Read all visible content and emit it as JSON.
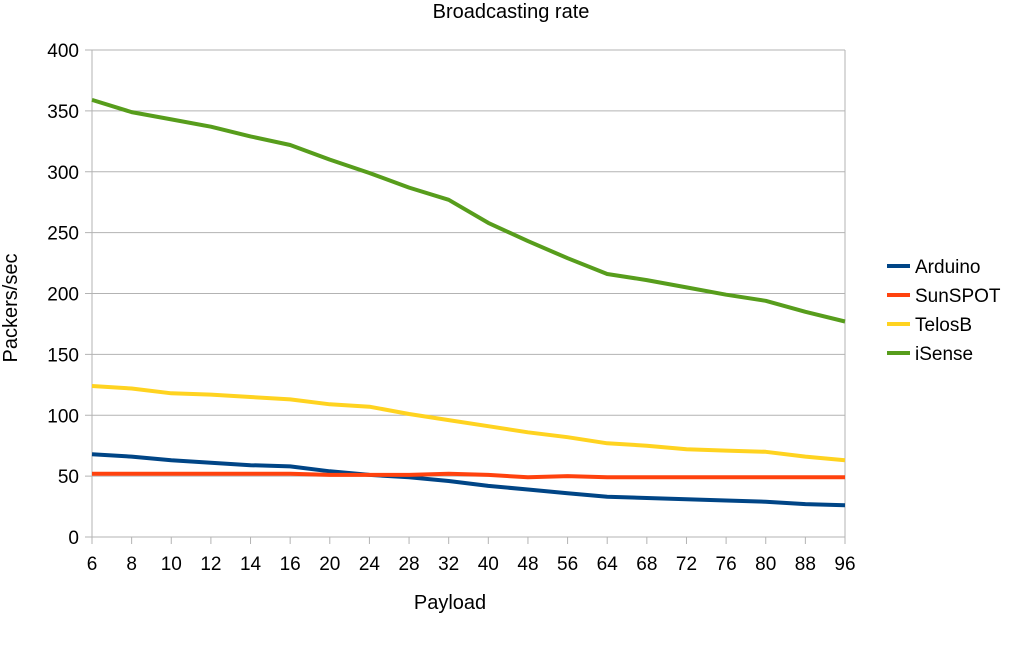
{
  "chart_data": {
    "type": "line",
    "title": "Broadcasting rate",
    "xlabel": "Payload",
    "ylabel": "Packers/sec",
    "categories": [
      "6",
      "8",
      "10",
      "12",
      "14",
      "16",
      "20",
      "24",
      "28",
      "32",
      "40",
      "48",
      "56",
      "64",
      "68",
      "72",
      "76",
      "80",
      "88",
      "96"
    ],
    "ylim": [
      0,
      400
    ],
    "yticks": [
      0,
      50,
      100,
      150,
      200,
      250,
      300,
      350,
      400
    ],
    "grid": true,
    "legend": "right",
    "series": [
      {
        "name": "Arduino",
        "color": "#004586",
        "values": [
          68,
          66,
          63,
          61,
          59,
          58,
          54,
          51,
          49,
          46,
          42,
          39,
          36,
          33,
          32,
          31,
          30,
          29,
          27,
          26
        ]
      },
      {
        "name": "SunSPOT",
        "color": "#ff420e",
        "values": [
          52,
          52,
          52,
          52,
          52,
          52,
          51,
          51,
          51,
          52,
          51,
          49,
          50,
          49,
          49,
          49,
          49,
          49,
          49,
          49
        ]
      },
      {
        "name": "TelosB",
        "color": "#ffd320",
        "values": [
          124,
          122,
          118,
          117,
          115,
          113,
          109,
          107,
          101,
          96,
          91,
          86,
          82,
          77,
          75,
          72,
          71,
          70,
          66,
          63
        ]
      },
      {
        "name": "iSense",
        "color": "#579d1c",
        "values": [
          359,
          349,
          343,
          337,
          329,
          322,
          310,
          299,
          287,
          277,
          258,
          243,
          229,
          216,
          211,
          205,
          199,
          194,
          185,
          177
        ]
      }
    ]
  }
}
